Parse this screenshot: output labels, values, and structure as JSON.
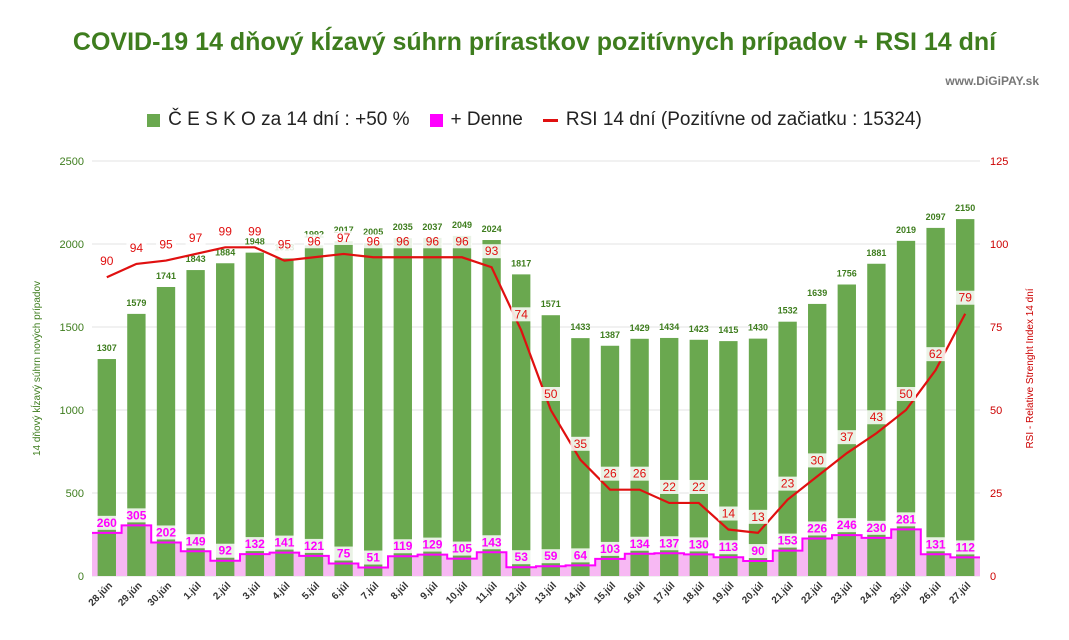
{
  "header": {
    "title": "COVID-19 14 dňový kĺzavý súhrn prírastkov pozitívnych prípadov + RSI 14 dní",
    "source": "www.DiGiPAY.sk"
  },
  "legend": {
    "bars": "Č E S K O za 14 dní : +50 %",
    "daily": "+ Denne",
    "rsi": "RSI 14 dní (Pozitívne od začiatku : 15324)"
  },
  "colors": {
    "title": "#3e7d1e",
    "bars": "#6aa84f",
    "daily": "#ff00ff",
    "daily_fill": "#f7b8f3",
    "rsi": "#e01010",
    "left_axis": "#3e7d1e",
    "right_axis": "#cc0000",
    "grid": "#e3e3e3"
  },
  "chart_data": {
    "type": "bar",
    "title": "COVID-19 14 dňový kĺzavý súhrn prírastkov pozitívnych prípadov + RSI 14 dní",
    "ylabel": "14 dňový kĺzavý súhrn nových prípadov",
    "y2label": "RSI - Relative Strenght Index 14 dní",
    "ylim": [
      0,
      2500
    ],
    "y2lim": [
      0,
      125
    ],
    "yticks": [
      0,
      500,
      1000,
      1500,
      2000,
      2500
    ],
    "y2ticks": [
      0,
      25,
      50,
      75,
      100,
      125
    ],
    "grid": true,
    "legend_position": "top",
    "categories": [
      "28.jún",
      "29.jún",
      "30.jún",
      "1.júl",
      "2.júl",
      "3.júl",
      "4.júl",
      "5.júl",
      "6.júl",
      "7.júl",
      "8.júl",
      "9.júl",
      "10.júl",
      "11.júl",
      "12.júl",
      "13.júl",
      "14.júl",
      "15.júl",
      "16.júl",
      "17.júl",
      "18.júl",
      "19.júl",
      "20.júl",
      "21.júl",
      "22.júl",
      "23.júl",
      "24.júl",
      "25.júl",
      "26.júl",
      "27.júl"
    ],
    "series": [
      {
        "name": "Č E S K O za 14 dní : +50 %",
        "type": "bar",
        "axis": "left",
        "values": [
          1307,
          1579,
          1741,
          1843,
          1884,
          1948,
          1913,
          1992,
          2017,
          2005,
          2035,
          2037,
          2049,
          2024,
          1817,
          1571,
          1433,
          1387,
          1429,
          1434,
          1423,
          1415,
          1430,
          1532,
          1639,
          1756,
          1881,
          2019,
          2097,
          2150
        ]
      },
      {
        "name": "+ Denne",
        "type": "step",
        "axis": "left",
        "values": [
          260,
          305,
          202,
          149,
          92,
          132,
          141,
          121,
          75,
          51,
          119,
          129,
          105,
          143,
          53,
          59,
          64,
          103,
          134,
          137,
          130,
          113,
          90,
          153,
          226,
          246,
          230,
          281,
          131,
          112
        ]
      },
      {
        "name": "RSI 14 dní (Pozitívne od začiatku : 15324)",
        "type": "line",
        "axis": "right",
        "values": [
          90,
          94,
          95,
          97,
          99,
          99,
          95,
          96,
          97,
          96,
          96,
          96,
          96,
          93,
          74,
          50,
          35,
          26,
          26,
          22,
          22,
          14,
          13,
          23,
          30,
          37,
          43,
          50,
          62,
          79
        ]
      }
    ]
  }
}
